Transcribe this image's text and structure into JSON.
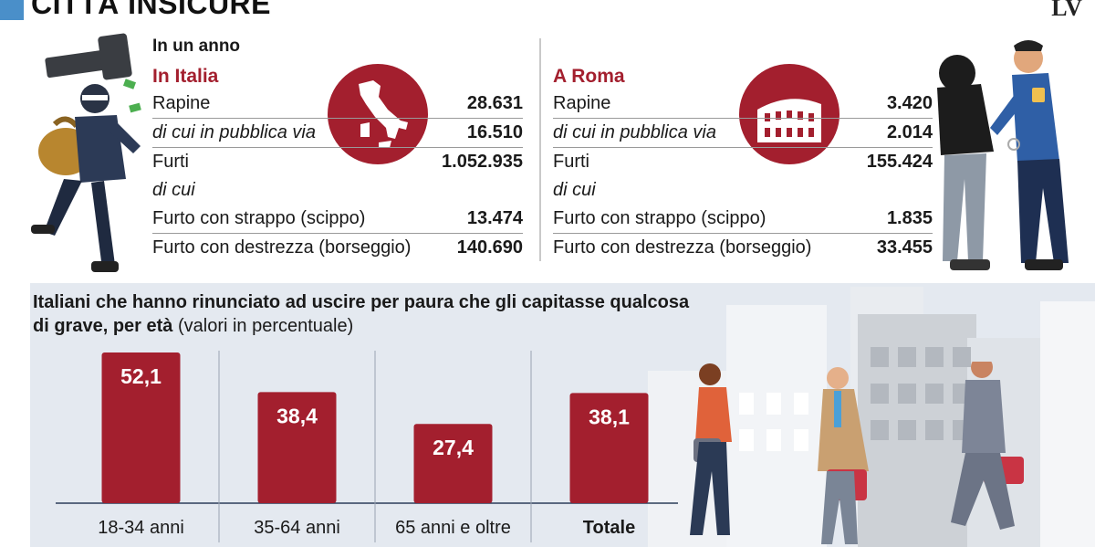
{
  "header": {
    "title": "CITTÀ INSICURE",
    "logo": "LV"
  },
  "period_label": "In un anno",
  "italia": {
    "heading": "In Italia",
    "rows": [
      {
        "label": "Rapine",
        "value": "28.631"
      },
      {
        "label": "di cui in pubblica via",
        "value": "16.510"
      },
      {
        "label": "Furti",
        "value": "1.052.935"
      },
      {
        "label": "di cui",
        "value": ""
      },
      {
        "label": "Furto con strappo (scippo)",
        "value": "13.474"
      },
      {
        "label": "Furto con destrezza (borseggio)",
        "value": "140.690"
      }
    ]
  },
  "roma": {
    "heading": "A Roma",
    "rows": [
      {
        "label": "Rapine",
        "value": "3.420"
      },
      {
        "label": "di cui in pubblica via",
        "value": "2.014"
      },
      {
        "label": "Furti",
        "value": "155.424"
      },
      {
        "label": "di cui",
        "value": ""
      },
      {
        "label": "Furto con strappo (scippo)",
        "value": "1.835"
      },
      {
        "label": "Furto con destrezza (borseggio)",
        "value": "33.455"
      }
    ]
  },
  "chart_data": {
    "type": "bar",
    "title_bold": "Italiani che hanno rinunciato ad uscire per paura che gli capitasse qualcosa di grave, per età",
    "title_note": "(valori in percentuale)",
    "categories": [
      "18-34 anni",
      "35-64 anni",
      "65 anni e oltre",
      "Totale"
    ],
    "values": [
      52.1,
      38.4,
      27.4,
      38.1
    ],
    "value_labels": [
      "52,1",
      "38,4",
      "27,4",
      "38,1"
    ],
    "ylim": [
      0,
      60
    ],
    "bar_color": "#a31f2e",
    "grid": false
  },
  "colors": {
    "accent": "#a31f2e",
    "panel_bg": "#e4e9f0",
    "title_marker": "#4a8fc9"
  }
}
